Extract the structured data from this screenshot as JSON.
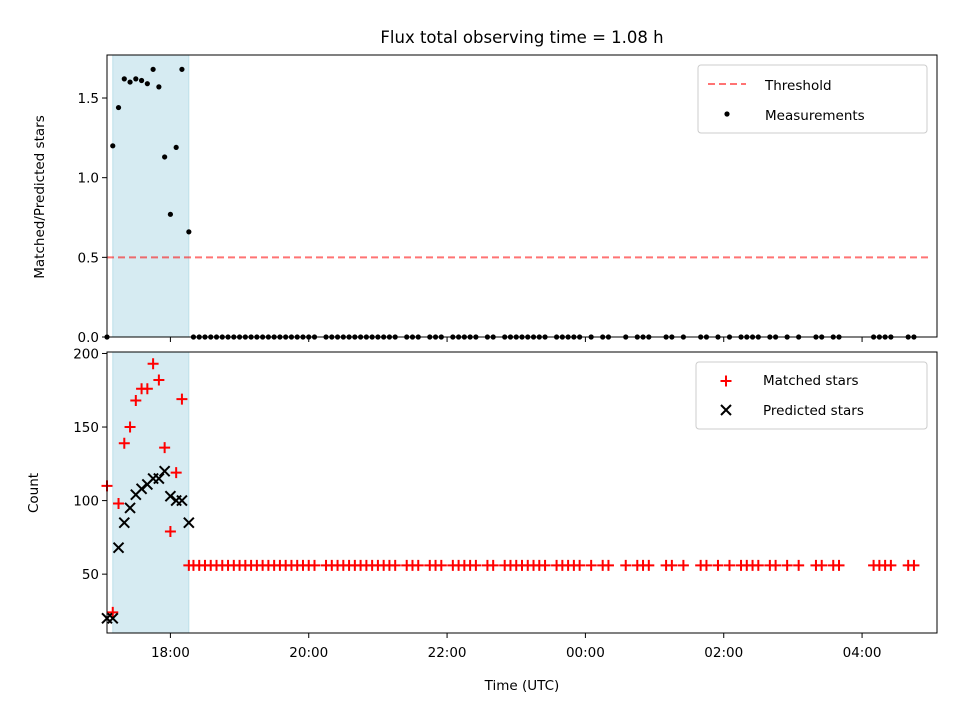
{
  "title": "Flux total observing time = 1.08 h",
  "chart_data": [
    {
      "type": "scatter",
      "panel": "top",
      "title": "Flux total observing time = 1.08 h",
      "xlabel": "",
      "ylabel": "Matched/Predicted stars",
      "xlim": [
        "17:05",
        "05:05"
      ],
      "ylim": [
        0,
        1.77
      ],
      "yticks": [
        0.0,
        0.5,
        1.0,
        1.5
      ],
      "yticklabels": [
        "0.0",
        "0.5",
        "1.0",
        "1.5"
      ],
      "legend_position": "upper-right",
      "shaded_region": {
        "from": "17:10",
        "to": "18:16",
        "color": "#add8e6"
      },
      "threshold": {
        "name": "Threshold",
        "y": 0.5,
        "from": "17:05",
        "to": "05:00",
        "color": "#ff0000"
      },
      "series": [
        {
          "name": "Measurements",
          "color": "#000000",
          "marker": "dot",
          "x": [
            "17:05",
            "17:10",
            "17:15",
            "17:20",
            "17:25",
            "17:30",
            "17:35",
            "17:40",
            "17:45",
            "17:50",
            "17:55",
            "18:00",
            "18:05",
            "18:10",
            "18:16"
          ],
          "y": [
            0,
            1.2,
            1.44,
            1.62,
            1.6,
            1.62,
            1.61,
            1.59,
            1.68,
            1.57,
            1.13,
            0.77,
            1.19,
            1.68,
            0.66
          ],
          "zero_x": [
            "18:20",
            "18:25",
            "18:30",
            "18:35",
            "18:40",
            "18:45",
            "18:50",
            "18:55",
            "19:00",
            "19:05",
            "19:10",
            "19:15",
            "19:20",
            "19:25",
            "19:30",
            "19:35",
            "19:40",
            "19:45",
            "19:50",
            "19:55",
            "20:00",
            "20:05",
            "20:15",
            "20:20",
            "20:25",
            "20:30",
            "20:35",
            "20:40",
            "20:45",
            "20:50",
            "20:55",
            "21:00",
            "21:05",
            "21:10",
            "21:15",
            "21:25",
            "21:30",
            "21:35",
            "21:45",
            "21:50",
            "21:55",
            "22:05",
            "22:10",
            "22:15",
            "22:20",
            "22:25",
            "22:35",
            "22:40",
            "22:50",
            "22:55",
            "23:00",
            "23:05",
            "23:10",
            "23:15",
            "23:20",
            "23:25",
            "23:35",
            "23:40",
            "23:45",
            "23:50",
            "23:55",
            "00:05",
            "00:15",
            "00:20",
            "00:35",
            "00:45",
            "00:50",
            "00:55",
            "01:10",
            "01:15",
            "01:25",
            "01:40",
            "01:45",
            "01:55",
            "02:05",
            "02:15",
            "02:20",
            "02:25",
            "02:30",
            "02:40",
            "02:45",
            "02:55",
            "03:05",
            "03:20",
            "03:25",
            "03:35",
            "03:40",
            "04:10",
            "04:15",
            "04:20",
            "04:25",
            "04:40",
            "04:45"
          ]
        }
      ]
    },
    {
      "type": "scatter",
      "panel": "bottom",
      "xlabel": "Time (UTC)",
      "ylabel": "Count",
      "xlim": [
        "17:05",
        "05:05"
      ],
      "ylim": [
        10,
        201
      ],
      "yticks": [
        50,
        100,
        150,
        200
      ],
      "yticklabels": [
        "50",
        "100",
        "150",
        "200"
      ],
      "xticks": [
        "18:00",
        "20:00",
        "22:00",
        "00:00",
        "02:00",
        "04:00"
      ],
      "xtick_positions": [
        60,
        180,
        300,
        420,
        540,
        660
      ],
      "legend_position": "upper-right",
      "shaded_region": {
        "from": "17:10",
        "to": "18:16",
        "color": "#add8e6"
      },
      "series": [
        {
          "name": "Matched stars",
          "color": "#ff0000",
          "marker": "plus",
          "x": [
            "17:05",
            "17:10",
            "17:15",
            "17:20",
            "17:25",
            "17:30",
            "17:35",
            "17:40",
            "17:45",
            "17:50",
            "17:55",
            "18:00",
            "18:05",
            "18:10"
          ],
          "y": [
            110,
            24,
            98,
            139,
            150,
            168,
            176,
            176,
            193,
            182,
            136,
            79,
            119,
            169
          ],
          "baseline_value": 56,
          "baseline_x": [
            "18:16",
            "18:20",
            "18:25",
            "18:30",
            "18:35",
            "18:40",
            "18:45",
            "18:50",
            "18:55",
            "19:00",
            "19:05",
            "19:10",
            "19:15",
            "19:20",
            "19:25",
            "19:30",
            "19:35",
            "19:40",
            "19:45",
            "19:50",
            "19:55",
            "20:00",
            "20:05",
            "20:15",
            "20:20",
            "20:25",
            "20:30",
            "20:35",
            "20:40",
            "20:45",
            "20:50",
            "20:55",
            "21:00",
            "21:05",
            "21:10",
            "21:15",
            "21:25",
            "21:30",
            "21:35",
            "21:45",
            "21:50",
            "21:55",
            "22:05",
            "22:10",
            "22:15",
            "22:20",
            "22:25",
            "22:35",
            "22:40",
            "22:50",
            "22:55",
            "23:00",
            "23:05",
            "23:10",
            "23:15",
            "23:20",
            "23:25",
            "23:35",
            "23:40",
            "23:45",
            "23:50",
            "23:55",
            "00:05",
            "00:15",
            "00:20",
            "00:35",
            "00:45",
            "00:50",
            "00:55",
            "01:10",
            "01:15",
            "01:25",
            "01:40",
            "01:45",
            "01:55",
            "02:05",
            "02:15",
            "02:20",
            "02:25",
            "02:30",
            "02:40",
            "02:45",
            "02:55",
            "03:05",
            "03:20",
            "03:25",
            "03:35",
            "03:40",
            "04:10",
            "04:15",
            "04:20",
            "04:25",
            "04:40",
            "04:45"
          ]
        },
        {
          "name": "Predicted stars",
          "color": "#000000",
          "marker": "x",
          "x": [
            "17:05",
            "17:10",
            "17:15",
            "17:20",
            "17:25",
            "17:30",
            "17:35",
            "17:40",
            "17:45",
            "17:50",
            "17:55",
            "18:00",
            "18:05",
            "18:10",
            "18:16"
          ],
          "y": [
            20,
            20,
            68,
            85,
            95,
            104,
            108,
            111,
            115,
            115,
            120,
            103,
            100,
            100,
            85
          ]
        }
      ]
    }
  ]
}
